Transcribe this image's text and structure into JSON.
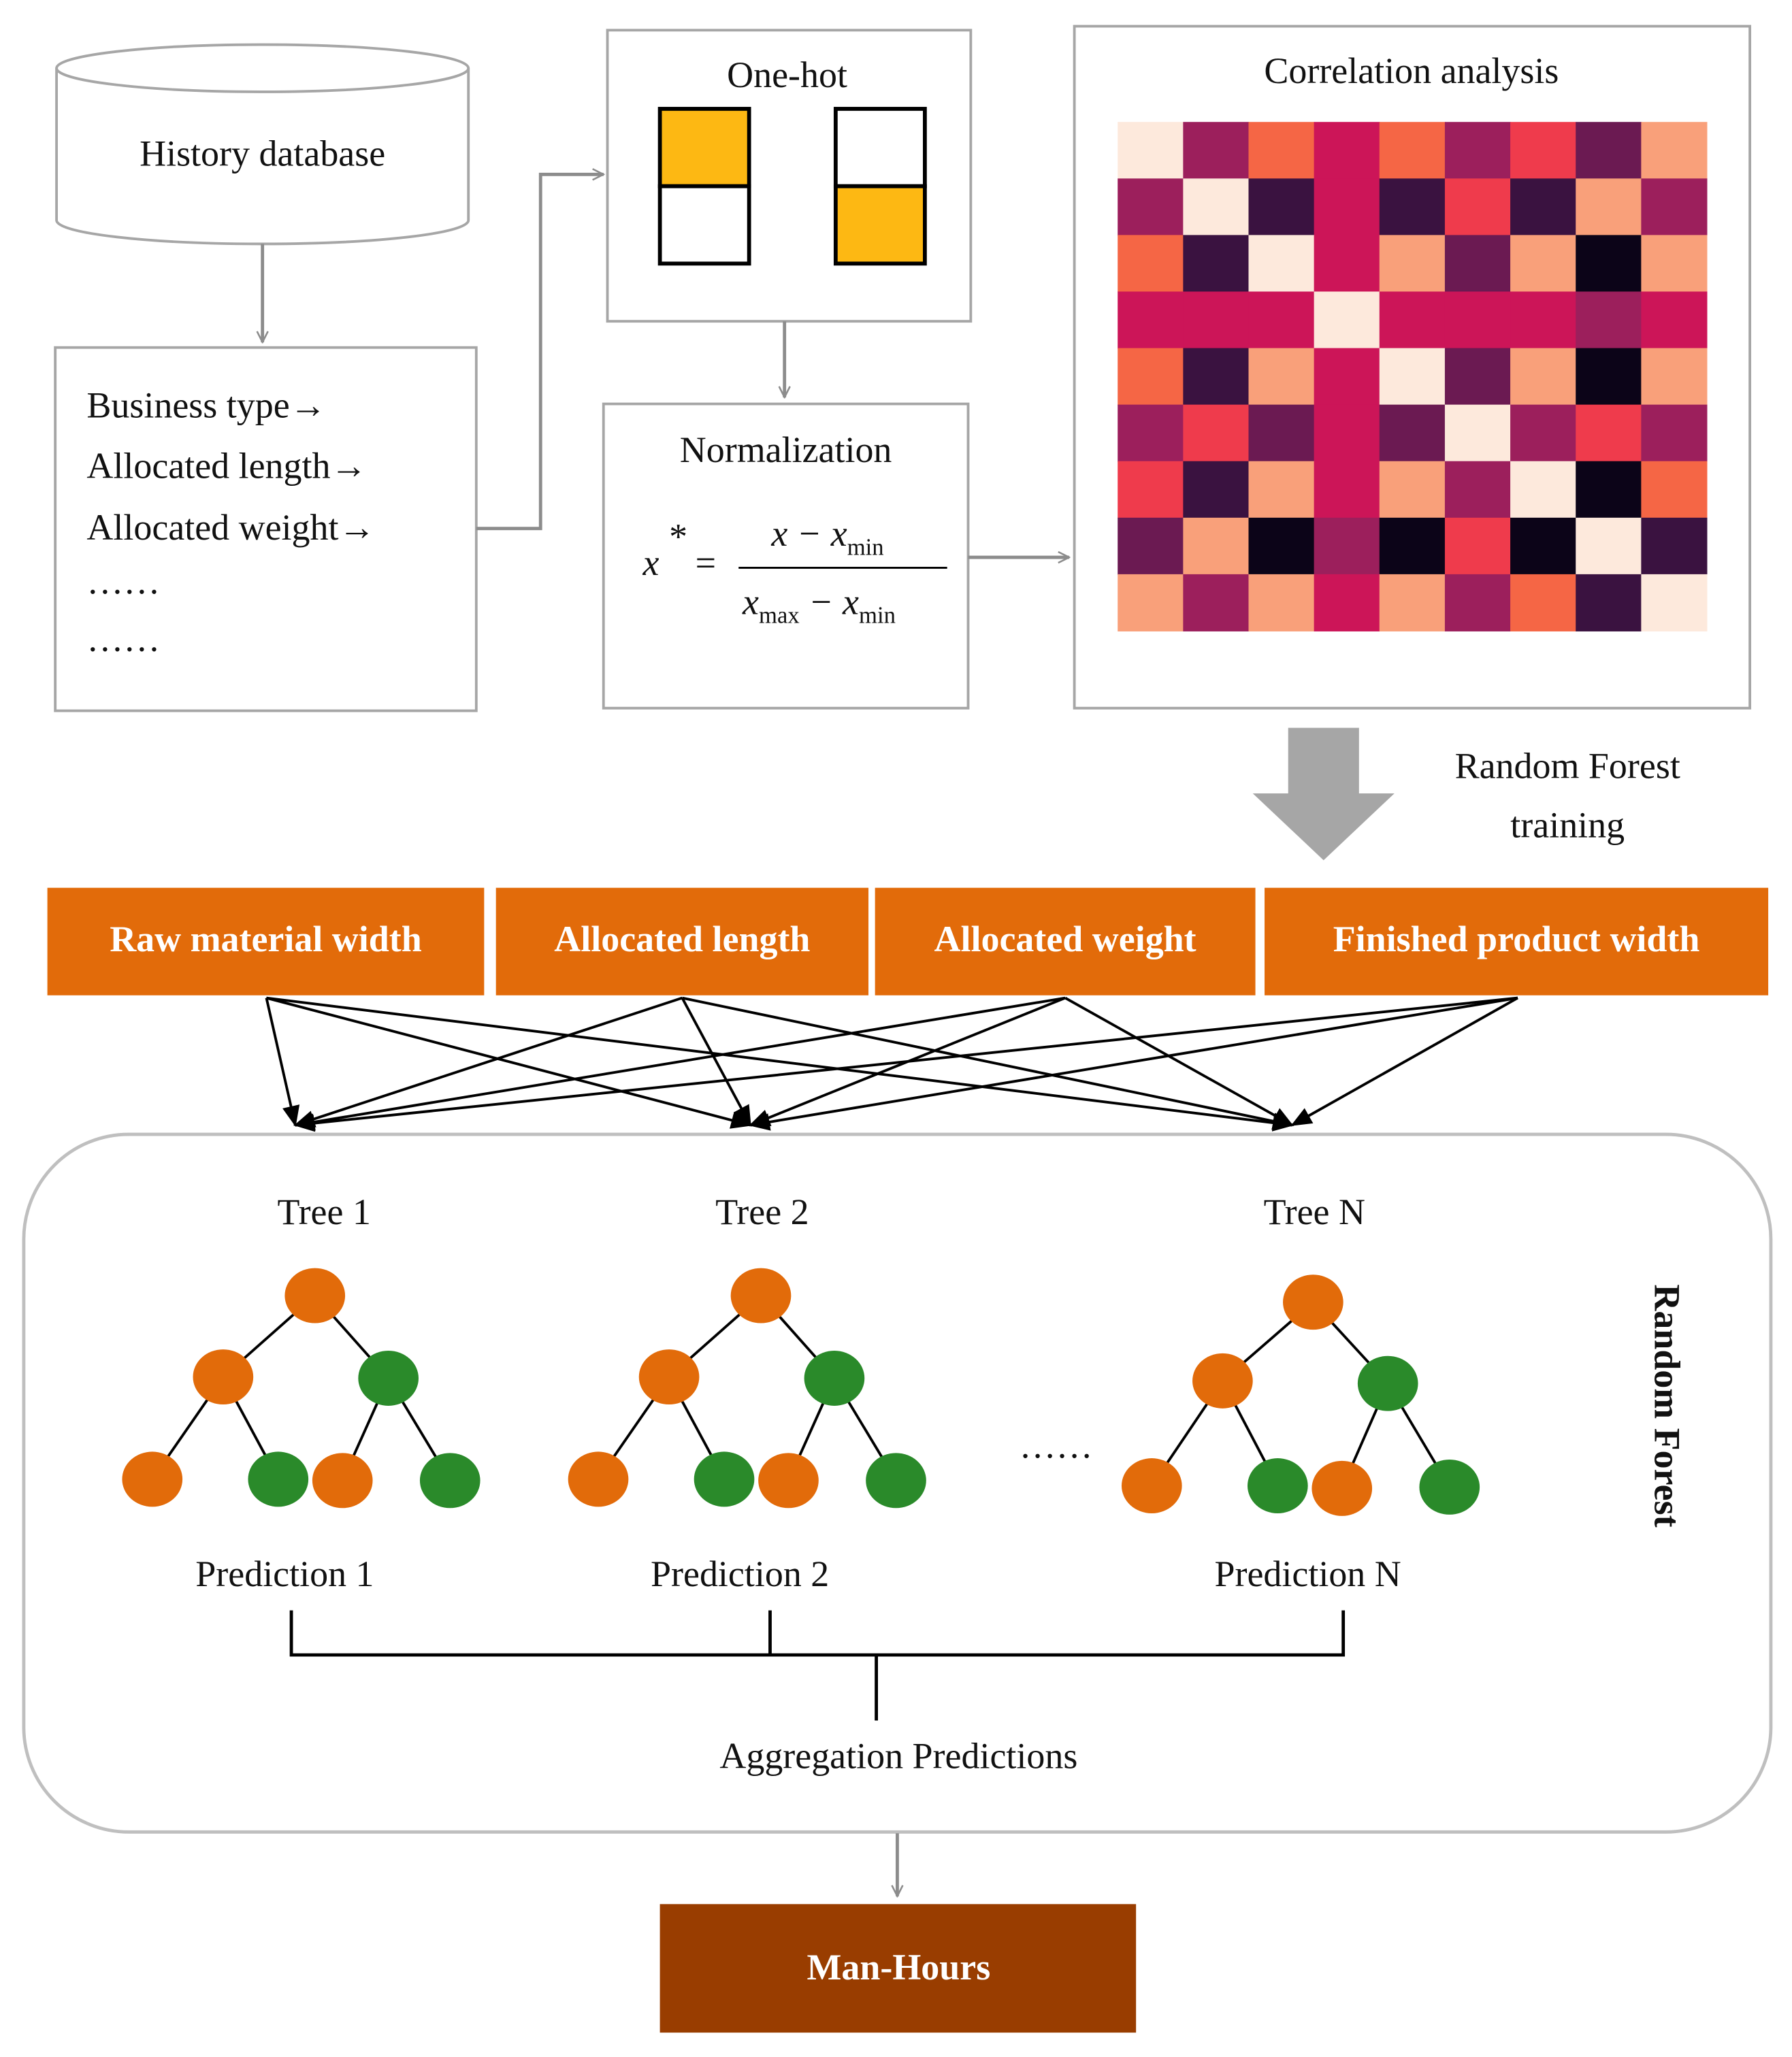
{
  "database": {
    "label": "History database"
  },
  "features_list": [
    "Business type→",
    "Allocated length→",
    "Allocated weight→",
    "……",
    "……"
  ],
  "one_hot": {
    "title": "One-hot"
  },
  "normalization": {
    "title": "Normalization",
    "formula": {
      "lhs": "x",
      "sup": "*",
      "eq": "=",
      "num": [
        "x − x",
        "min"
      ],
      "den": [
        "x",
        "max",
        " − x",
        "min"
      ]
    }
  },
  "correlation": {
    "title": "Correlation analysis"
  },
  "training_label": [
    "Random Forest",
    "training"
  ],
  "features": [
    "Raw material width",
    "Allocated length",
    "Allocated weight",
    "Finished product width"
  ],
  "forest": {
    "label": "Random Forest",
    "trees": [
      "Tree 1",
      "Tree 2",
      "Tree N"
    ],
    "ellipsis": "……",
    "predictions": [
      "Prediction 1",
      "Prediction 2",
      "Prediction N"
    ],
    "aggregation": "Aggregation Predictions"
  },
  "output": "Man-Hours"
}
